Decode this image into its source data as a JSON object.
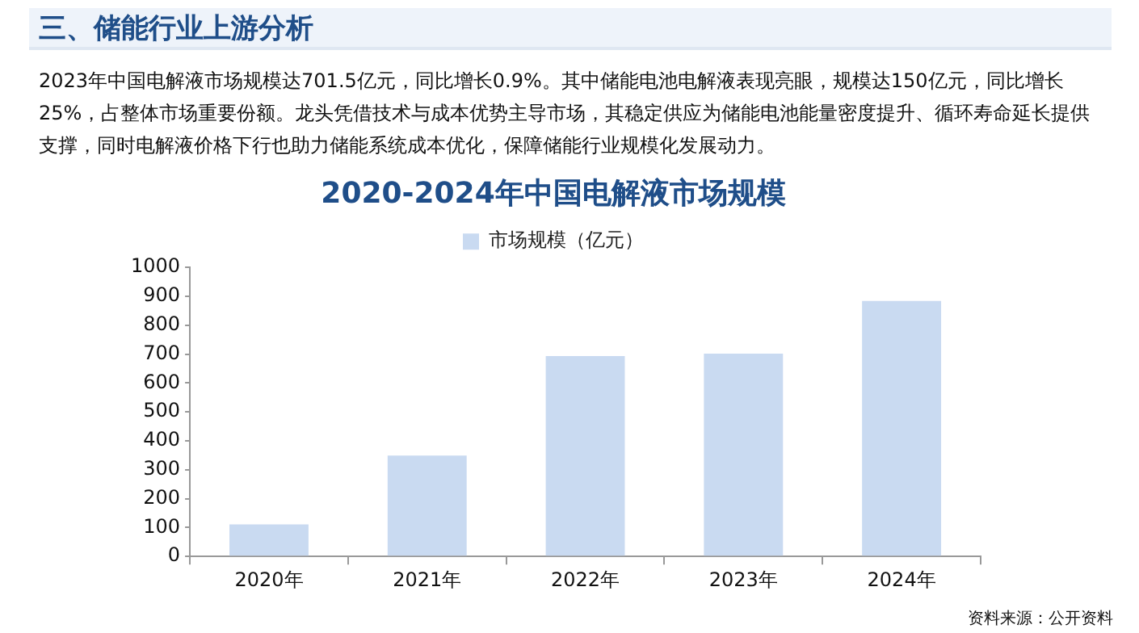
{
  "chart_data": {
    "type": "bar",
    "title": "2020-2024年中国电解液市场规模",
    "annotations": [
      "三、储能行业上游分析",
      "2023年中国电解液市场规模达701.5亿元，同比增长0.9%。其中储能电池电解液表现亮眼，规模达150亿元，同比增长25%，占整体市场重要份额。龙头凭借技术与成本优势主导市场，其稳定供应为储能电池能量密度提升、循环寿命延长提供支撑，同时电解液价格下行也助力储能系统成本优化，保障储能行业规模化发展动力。",
      "资料来源：公开资料"
    ],
    "categories": [
      "2020年",
      "2021年",
      "2022年",
      "2023年",
      "2024年"
    ],
    "series": [
      {
        "name": "市场规模（亿元）",
        "color": "#c9daf1",
        "values": [
          111,
          349,
          693,
          701.5,
          884
        ]
      }
    ],
    "ylim": [
      0,
      1000
    ],
    "yticks": [
      0,
      100,
      200,
      300,
      400,
      500,
      600,
      700,
      800,
      900,
      1000
    ],
    "grid": false,
    "legend": "top"
  }
}
